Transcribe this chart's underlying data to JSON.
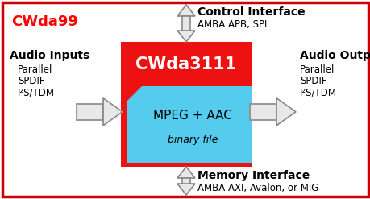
{
  "title": "CWda99",
  "title_color": "#FF0000",
  "outer_box_color": "#CC0000",
  "bg_color": "#FFFFFF",
  "chip_label": "CWda3111",
  "chip_color": "#EE1111",
  "chip_text_color": "#FFFFFF",
  "inner_box_label1": "MPEG + AAC",
  "inner_box_label2": "binary file",
  "inner_box_color": "#55CCEE",
  "inner_box_text_color": "#000000",
  "control_label1": "Control Interface",
  "control_label2": "AMBA APB, SPI",
  "memory_label1": "Memory Interface",
  "memory_label2": "AMBA AXI, Avalon, or MIG",
  "audio_in_label1": "Audio Inputs",
  "audio_in_label2": "Parallel",
  "audio_in_label3": "SPDIF",
  "audio_in_label4": "I²S/TDM",
  "audio_out_label1": "Audio Outputs",
  "audio_out_label2": "Parallel",
  "audio_out_label3": "SPDIF",
  "audio_out_label4": "I²S/TDM",
  "arrow_fill": "#E8E8E8",
  "arrow_edge": "#888888"
}
